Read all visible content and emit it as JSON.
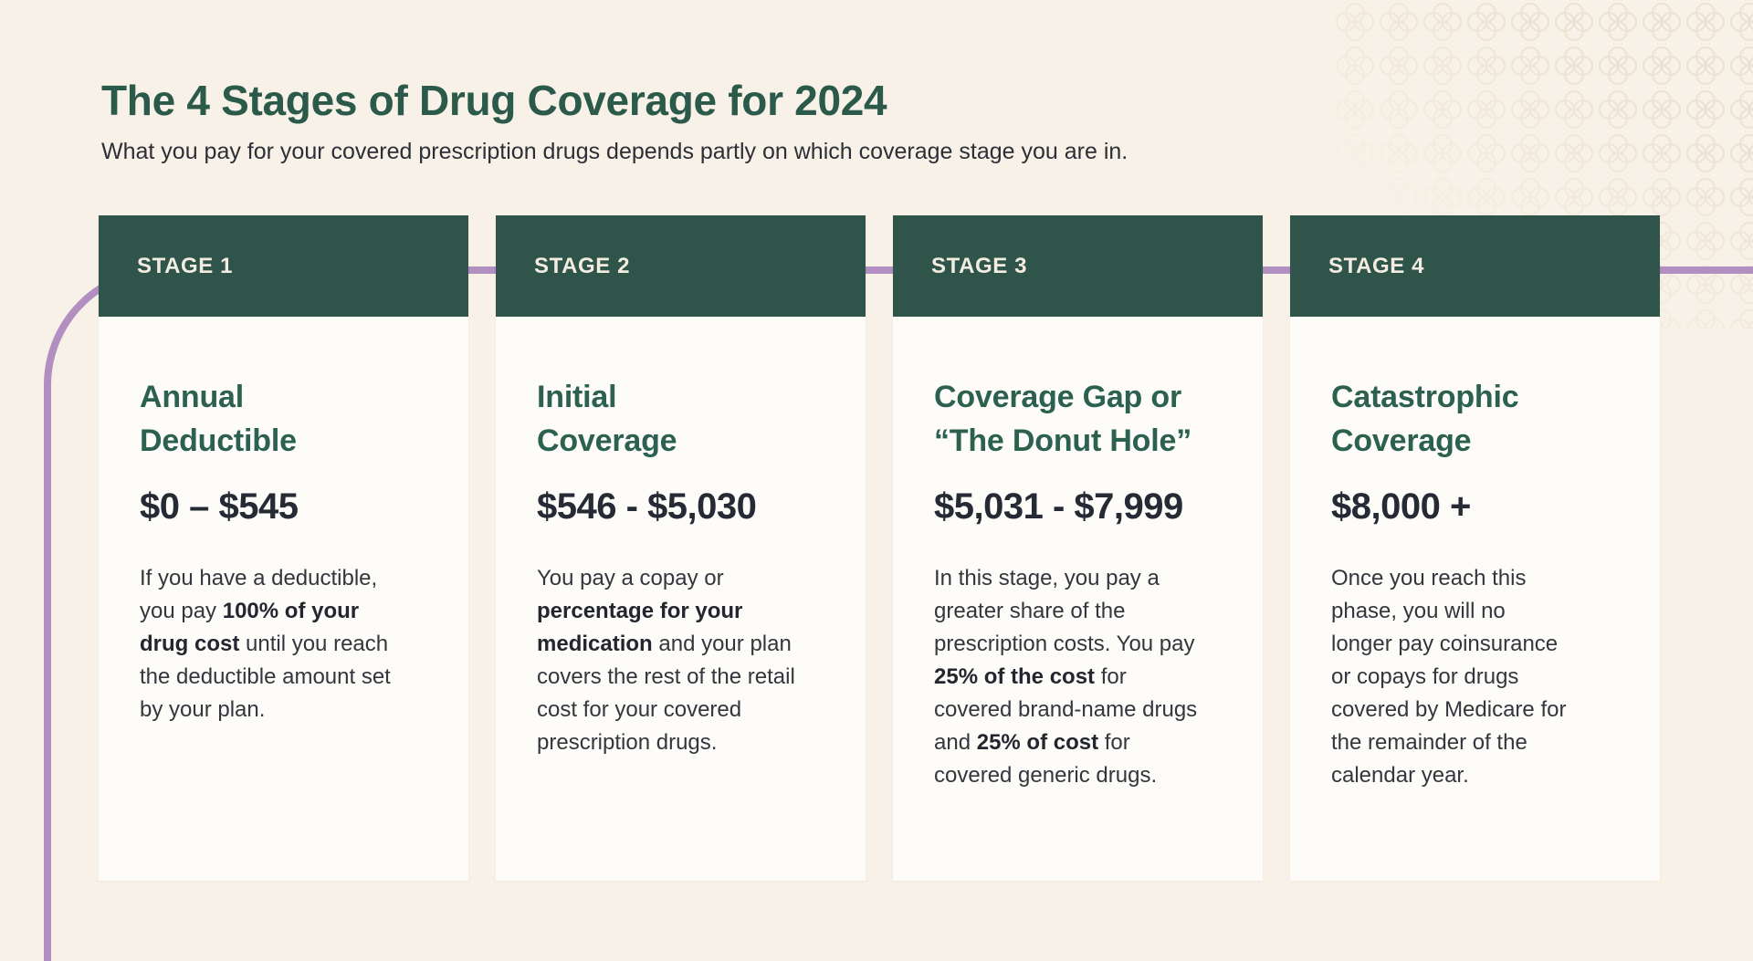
{
  "page": {
    "title": "The 4 Stages of Drug Coverage for 2024",
    "subtitle": "What you pay for your covered prescription drugs depends partly on which coverage stage you are in."
  },
  "colors": {
    "background": "#f7f1e8",
    "header_green": "#2f5449",
    "heading_green": "#2c6051",
    "title_green": "#2b5a4b",
    "purple": "#b28fc0",
    "range_dark": "#262a35",
    "body_dark": "#33363d",
    "card_bg": "#fdfcf9",
    "stage_label_color": "#f2ece1"
  },
  "stages": [
    {
      "label": "STAGE 1",
      "heading": "Annual\nDeductible",
      "range": "$0 – $545",
      "body": [
        {
          "text": "If you have a deductible, you pay ",
          "bold": false
        },
        {
          "text": "100% of your drug cost",
          "bold": true
        },
        {
          "text": " until you reach the deductible amount set by your plan.",
          "bold": false
        }
      ]
    },
    {
      "label": "STAGE 2",
      "heading": "Initial\nCoverage",
      "range": "$546 - $5,030",
      "body": [
        {
          "text": "You pay a copay or ",
          "bold": false
        },
        {
          "text": "percentage for your medication",
          "bold": true
        },
        {
          "text": " and your plan covers the rest of the retail cost for your covered prescription drugs.",
          "bold": false
        }
      ]
    },
    {
      "label": "STAGE 3",
      "heading": "Coverage Gap or\n“The Donut Hole”",
      "range": "$5,031 - $7,999",
      "body": [
        {
          "text": "In this stage, you pay a greater share of the prescription costs. You pay ",
          "bold": false
        },
        {
          "text": "25% of the cost",
          "bold": true
        },
        {
          "text": " for covered brand-name drugs and ",
          "bold": false
        },
        {
          "text": "25% of cost",
          "bold": true
        },
        {
          "text": " for covered generic drugs.",
          "bold": false
        }
      ]
    },
    {
      "label": "STAGE 4",
      "heading": "Catastrophic\nCoverage",
      "range": "$8,000 +",
      "body": [
        {
          "text": "Once you reach this phase, you will no longer pay coinsurance or copays for drugs covered by Medicare for the remainder of the calendar year.",
          "bold": false
        }
      ]
    }
  ]
}
